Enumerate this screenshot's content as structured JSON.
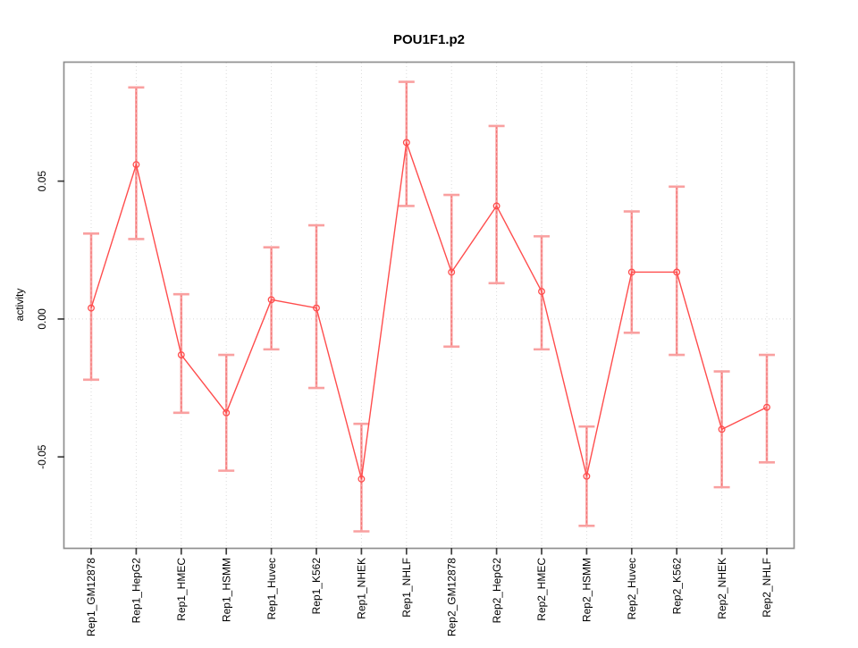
{
  "page": {
    "background": "#ffffff"
  },
  "chart_data": {
    "type": "line",
    "title": "POU1F1.p2",
    "xlabel": "",
    "ylabel": "activity",
    "legend": "none",
    "marker": "open-circle",
    "categories": [
      "Rep1_GM12878",
      "Rep1_HepG2",
      "Rep1_HMEC",
      "Rep1_HSMM",
      "Rep1_Huvec",
      "Rep1_K562",
      "Rep1_NHEK",
      "Rep1_NHLF",
      "Rep2_GM12878",
      "Rep2_HepG2",
      "Rep2_HMEC",
      "Rep2_HSMM",
      "Rep2_Huvec",
      "Rep2_K562",
      "Rep2_NHEK",
      "Rep2_NHLF"
    ],
    "series": [
      {
        "name": "activity",
        "values": [
          0.004,
          0.056,
          -0.013,
          -0.034,
          0.007,
          0.004,
          -0.058,
          0.064,
          0.017,
          0.041,
          0.01,
          -0.057,
          0.017,
          0.017,
          -0.04,
          -0.032
        ],
        "upper": [
          0.031,
          0.084,
          0.009,
          -0.013,
          0.026,
          0.034,
          -0.038,
          0.086,
          0.045,
          0.07,
          0.03,
          -0.039,
          0.039,
          0.048,
          -0.019,
          -0.013
        ],
        "lower": [
          -0.022,
          0.029,
          -0.034,
          -0.055,
          -0.011,
          -0.025,
          -0.077,
          0.041,
          -0.01,
          0.013,
          -0.011,
          -0.075,
          -0.005,
          -0.013,
          -0.061,
          -0.052
        ]
      }
    ],
    "ytick_values": [
      -0.05,
      0,
      0.05
    ],
    "ytick_labels": [
      "-0.05",
      "0.00",
      "0.05"
    ],
    "ylim": [
      -0.083,
      0.093
    ],
    "grid": {
      "vertical_per_category": true,
      "horizontal_zero_line": true,
      "style": "dotted"
    },
    "colors": {
      "series_line": "#ff4d4d",
      "point_stroke": "#ff4d4d",
      "error_bar": "#f9a0a0",
      "error_bar_dash": "#f26a6a",
      "grid": "#dadada",
      "box_border": "#8f8f8f",
      "tick": "#3c3c3c",
      "text": "#000000"
    }
  }
}
